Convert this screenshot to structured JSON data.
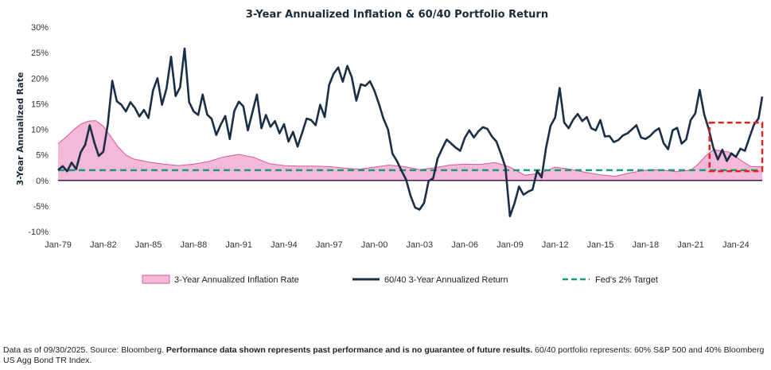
{
  "chart_data": {
    "type": "line",
    "title": "3-Year Annualized Inflation & 60/40 Portfolio Return",
    "ylabel": "3-Year Annualized Rate",
    "xlabel": "",
    "ylim": [
      -10,
      30
    ],
    "y_ticks": [
      "-10%",
      "-5%",
      "0%",
      "5%",
      "10%",
      "15%",
      "20%",
      "25%",
      "30%"
    ],
    "y_tick_values": [
      -10,
      -5,
      0,
      5,
      10,
      15,
      20,
      25,
      30
    ],
    "x_range": [
      1979.0,
      2025.75
    ],
    "x_ticks": [
      "Jan-79",
      "Jan-82",
      "Jan-85",
      "Jan-88",
      "Jan-91",
      "Jan-94",
      "Jan-97",
      "Jan-00",
      "Jan-03",
      "Jan-06",
      "Jan-09",
      "Jan-12",
      "Jan-15",
      "Jan-18",
      "Jan-21",
      "Jan-24"
    ],
    "x_tick_values": [
      1979,
      1982,
      1985,
      1988,
      1991,
      1994,
      1997,
      2000,
      2003,
      2006,
      2009,
      2012,
      2015,
      2018,
      2021,
      2024
    ],
    "grid": false,
    "legend_position": "bottom",
    "series": [
      {
        "name": "3-Year Annualized Inflation Rate",
        "style": "area",
        "color": "#f4b8d8",
        "edge_color": "#d8579a",
        "x": [
          1979.0,
          1979.5,
          1980.0,
          1980.5,
          1981.0,
          1981.5,
          1982.0,
          1982.5,
          1983.0,
          1983.5,
          1984.0,
          1985.0,
          1986.0,
          1987.0,
          1988.0,
          1989.0,
          1990.0,
          1991.0,
          1992.0,
          1993.0,
          1994.0,
          1995.0,
          1996.0,
          1997.0,
          1998.0,
          1999.0,
          2000.0,
          2001.0,
          2002.0,
          2003.0,
          2004.0,
          2005.0,
          2006.0,
          2007.0,
          2008.0,
          2009.0,
          2010.0,
          2011.0,
          2012.0,
          2013.0,
          2014.0,
          2015.0,
          2016.0,
          2017.0,
          2018.0,
          2019.0,
          2020.0,
          2021.0,
          2021.5,
          2022.0,
          2022.5,
          2023.0,
          2023.5,
          2024.0,
          2024.5,
          2025.0,
          2025.75
        ],
        "values": [
          7.2,
          8.4,
          9.8,
          11.0,
          11.6,
          11.7,
          10.6,
          8.6,
          6.5,
          5.0,
          4.2,
          3.6,
          3.2,
          2.9,
          3.2,
          3.7,
          4.6,
          5.1,
          4.5,
          3.3,
          2.9,
          2.8,
          2.8,
          2.7,
          2.4,
          2.2,
          2.6,
          3.0,
          2.7,
          2.1,
          2.5,
          3.0,
          3.2,
          3.1,
          3.5,
          2.6,
          1.0,
          1.4,
          2.6,
          2.2,
          1.6,
          1.1,
          0.8,
          1.5,
          2.0,
          2.1,
          1.7,
          2.0,
          3.2,
          4.8,
          6.0,
          5.8,
          5.6,
          4.6,
          3.6,
          2.7,
          2.7
        ]
      },
      {
        "name": "60/40 3-Year Annualized Return",
        "style": "line",
        "color": "#1a2e45",
        "x": [
          1979.0,
          1979.3,
          1979.6,
          1979.9,
          1980.2,
          1980.5,
          1980.8,
          1981.1,
          1981.4,
          1981.7,
          1982.0,
          1982.3,
          1982.6,
          1982.9,
          1983.2,
          1983.5,
          1983.8,
          1984.1,
          1984.4,
          1984.7,
          1985.0,
          1985.3,
          1985.6,
          1985.9,
          1986.2,
          1986.5,
          1986.8,
          1987.1,
          1987.4,
          1987.7,
          1988.0,
          1988.3,
          1988.6,
          1988.9,
          1989.2,
          1989.5,
          1989.8,
          1990.1,
          1990.4,
          1990.7,
          1991.0,
          1991.3,
          1991.6,
          1991.9,
          1992.2,
          1992.5,
          1992.8,
          1993.1,
          1993.4,
          1993.7,
          1994.0,
          1994.3,
          1994.6,
          1994.9,
          1995.2,
          1995.5,
          1995.8,
          1996.1,
          1996.4,
          1996.7,
          1997.0,
          1997.3,
          1997.6,
          1997.9,
          1998.2,
          1998.5,
          1998.8,
          1999.1,
          1999.4,
          1999.7,
          2000.0,
          2000.3,
          2000.6,
          2000.9,
          2001.2,
          2001.5,
          2001.8,
          2002.1,
          2002.4,
          2002.7,
          2003.0,
          2003.3,
          2003.6,
          2003.9,
          2004.2,
          2004.5,
          2004.8,
          2005.1,
          2005.4,
          2005.7,
          2006.0,
          2006.3,
          2006.6,
          2006.9,
          2007.2,
          2007.5,
          2007.8,
          2008.1,
          2008.4,
          2008.7,
          2009.0,
          2009.3,
          2009.6,
          2009.9,
          2010.2,
          2010.5,
          2010.8,
          2011.1,
          2011.4,
          2011.7,
          2012.0,
          2012.3,
          2012.6,
          2012.9,
          2013.2,
          2013.5,
          2013.8,
          2014.1,
          2014.4,
          2014.7,
          2015.0,
          2015.3,
          2015.6,
          2015.9,
          2016.2,
          2016.5,
          2016.8,
          2017.1,
          2017.4,
          2017.7,
          2018.0,
          2018.3,
          2018.6,
          2018.9,
          2019.2,
          2019.5,
          2019.8,
          2020.1,
          2020.4,
          2020.7,
          2021.0,
          2021.3,
          2021.6,
          2021.9,
          2022.2,
          2022.5,
          2022.8,
          2023.1,
          2023.4,
          2023.7,
          2024.0,
          2024.3,
          2024.6,
          2024.9,
          2025.2,
          2025.5,
          2025.75
        ],
        "values": [
          2.0,
          2.8,
          1.8,
          3.5,
          2.2,
          5.5,
          7.0,
          10.8,
          7.5,
          4.8,
          5.6,
          11.0,
          19.5,
          15.5,
          14.8,
          13.5,
          15.3,
          14.2,
          12.5,
          13.8,
          12.2,
          17.6,
          20.0,
          14.8,
          18.0,
          24.2,
          16.5,
          18.2,
          25.8,
          15.3,
          13.5,
          12.8,
          16.8,
          12.9,
          12.0,
          8.9,
          10.9,
          12.6,
          8.1,
          13.6,
          15.4,
          14.5,
          9.8,
          13.3,
          16.8,
          10.2,
          12.8,
          10.5,
          11.6,
          9.2,
          11.0,
          7.6,
          9.5,
          6.6,
          9.3,
          12.1,
          11.8,
          10.8,
          14.8,
          12.4,
          18.7,
          20.9,
          22.1,
          19.3,
          22.4,
          20.2,
          15.6,
          18.8,
          18.5,
          19.4,
          17.6,
          15.0,
          12.1,
          10.0,
          5.2,
          3.8,
          1.9,
          0.2,
          -3.0,
          -5.3,
          -5.7,
          -4.4,
          -0.1,
          0.4,
          4.3,
          6.2,
          8.0,
          7.2,
          6.4,
          5.8,
          8.3,
          9.8,
          8.4,
          9.6,
          10.4,
          10.1,
          8.6,
          7.6,
          5.2,
          2.6,
          -7.0,
          -4.5,
          -1.2,
          -2.8,
          -2.2,
          -1.8,
          1.9,
          0.6,
          6.4,
          10.7,
          12.3,
          18.1,
          11.3,
          10.2,
          11.9,
          13.0,
          11.6,
          12.4,
          10.2,
          9.8,
          11.8,
          8.6,
          8.7,
          7.5,
          7.9,
          8.8,
          9.2,
          10.0,
          10.8,
          8.4,
          8.1,
          8.7,
          9.6,
          10.2,
          7.3,
          6.1,
          9.8,
          10.3,
          7.2,
          8.0,
          11.8,
          13.1,
          17.7,
          12.9,
          10.0,
          6.4,
          4.1,
          6.0,
          3.8,
          5.3,
          4.6,
          6.2,
          5.8,
          8.4,
          10.9,
          12.1,
          16.4
        ]
      },
      {
        "name": "Fed's 2% Target",
        "style": "dashed",
        "color": "#1a9a7a",
        "x": [
          1979.0,
          2025.75
        ],
        "values": [
          2,
          2
        ]
      }
    ],
    "highlight_box": {
      "x": [
        2022.25,
        2025.75
      ],
      "y": [
        1.8,
        11.3
      ],
      "color": "#e02424"
    }
  },
  "footnote": {
    "part1": "Data as of 09/30/2025. Source: Bloomberg. ",
    "part2_bold": "Performance data shown represents past performance and is no guarantee of future results.",
    "part3": " 60/40 portfolio represents: 60% S&P 500 and 40% Bloomberg US Agg Bond TR Index."
  }
}
